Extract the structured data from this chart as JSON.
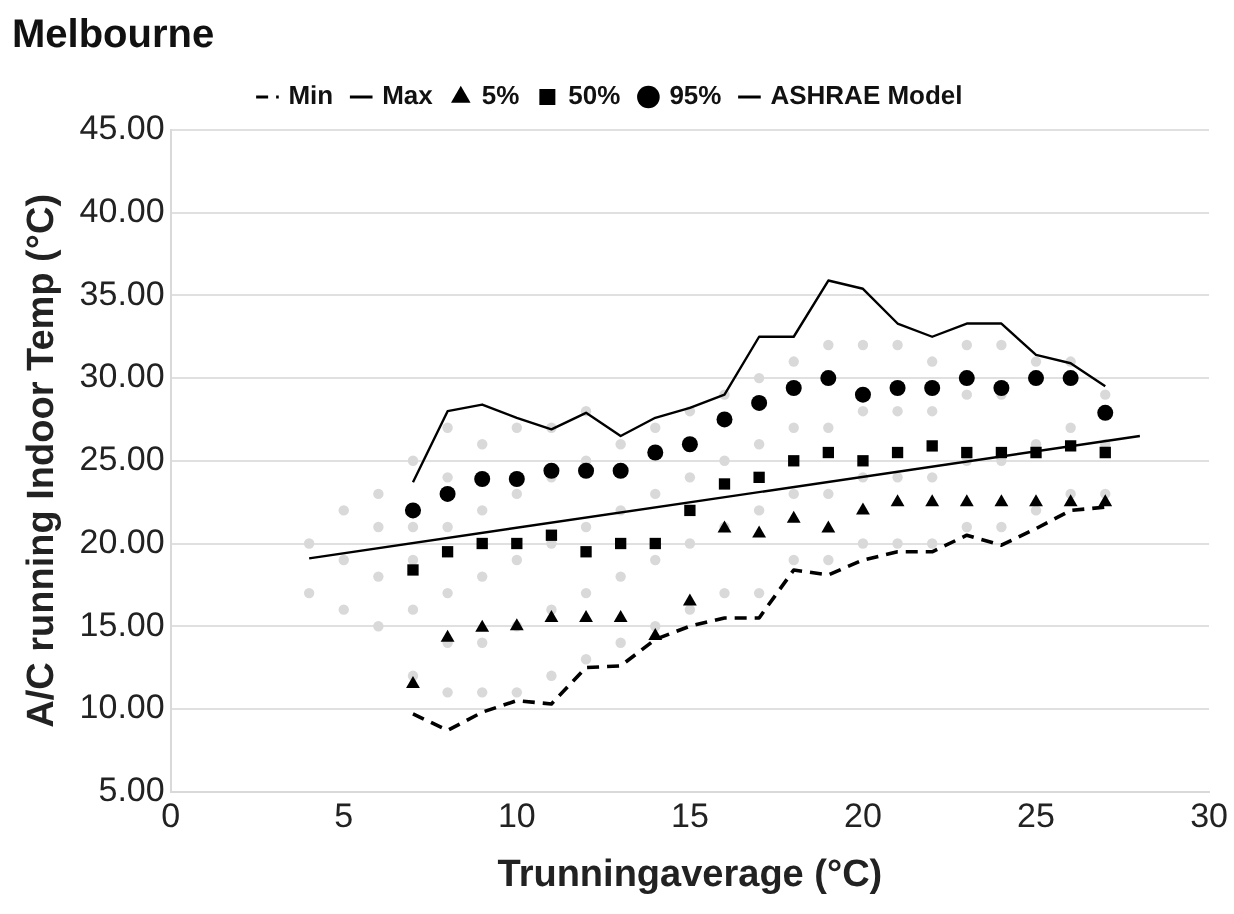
{
  "chart_data": {
    "type": "scatter",
    "title": "Melbourne",
    "xlabel": "Trunningaverage (°C)",
    "ylabel": "A/C running Indoor Temp (°C)",
    "xlim": [
      0,
      30
    ],
    "xticks": [
      0,
      5,
      10,
      15,
      20,
      25,
      30
    ],
    "ylim": [
      5,
      45
    ],
    "yticks": [
      {
        "value": 5,
        "label": "5.00"
      },
      {
        "value": 10,
        "label": "10.00"
      },
      {
        "value": 15,
        "label": "15.00"
      },
      {
        "value": 20,
        "label": "20.00"
      },
      {
        "value": 25,
        "label": "25.00"
      },
      {
        "value": 30,
        "label": "30.00"
      },
      {
        "value": 35,
        "label": "35.00"
      },
      {
        "value": 40,
        "label": "40.00"
      },
      {
        "value": 45,
        "label": "45.00"
      }
    ],
    "grid": "y",
    "legend": "top",
    "series": [
      {
        "type": "scatter",
        "color": "#d9d9d9",
        "marker": "circle",
        "x": [
          4,
          4,
          5,
          5,
          5,
          6,
          6,
          6,
          6,
          7,
          7,
          7,
          7,
          7,
          8,
          8,
          8,
          8,
          8,
          8,
          9,
          9,
          9,
          9,
          9,
          10,
          10,
          10,
          10,
          10,
          11,
          11,
          11,
          11,
          11,
          12,
          12,
          12,
          12,
          12,
          13,
          13,
          13,
          13,
          14,
          14,
          14,
          14,
          15,
          15,
          15,
          15,
          16,
          16,
          16,
          16,
          17,
          17,
          17,
          17,
          18,
          18,
          18,
          18,
          19,
          19,
          19,
          19,
          20,
          20,
          20,
          20,
          21,
          21,
          21,
          21,
          22,
          22,
          22,
          22,
          23,
          23,
          23,
          23,
          24,
          24,
          24,
          24,
          25,
          25,
          25,
          26,
          26,
          26,
          27,
          27,
          27
        ],
        "values": [
          17,
          20,
          16,
          19,
          22,
          15,
          18,
          21,
          23,
          12,
          16,
          19,
          21,
          25,
          11,
          14,
          17,
          21,
          24,
          27,
          11,
          14,
          18,
          22,
          26,
          11,
          15,
          19,
          23,
          27,
          12,
          16,
          20,
          24,
          27,
          13,
          17,
          21,
          25,
          28,
          14,
          18,
          22,
          26,
          15,
          19,
          23,
          27,
          16,
          20,
          24,
          28,
          17,
          21,
          25,
          29,
          17,
          22,
          26,
          30,
          19,
          23,
          27,
          31,
          19,
          23,
          27,
          32,
          20,
          24,
          28,
          32,
          20,
          24,
          28,
          32,
          20,
          24,
          28,
          31,
          21,
          25,
          29,
          32,
          21,
          25,
          29,
          32,
          22,
          26,
          31,
          23,
          27,
          31,
          23,
          26,
          29
        ]
      },
      {
        "type": "line",
        "name": "Min",
        "color": "#000000",
        "line_style": "dashed",
        "marker": "none",
        "x": [
          7,
          8,
          9,
          10,
          11,
          12,
          13,
          14,
          15,
          16,
          17,
          18,
          19,
          20,
          21,
          22,
          23,
          24,
          25,
          26,
          27
        ],
        "values": [
          9.7,
          8.7,
          9.8,
          10.5,
          10.3,
          12.5,
          12.6,
          14.2,
          15.0,
          15.5,
          15.5,
          18.4,
          18.1,
          19.0,
          19.5,
          19.5,
          20.5,
          19.9,
          20.9,
          22.0,
          22.2
        ]
      },
      {
        "type": "line",
        "name": "Max",
        "color": "#000000",
        "line_style": "solid",
        "marker": "none",
        "x": [
          7,
          8,
          9,
          10,
          11,
          12,
          13,
          14,
          15,
          16,
          17,
          18,
          19,
          20,
          21,
          22,
          23,
          24,
          25,
          26,
          27
        ],
        "values": [
          23.7,
          28.0,
          28.4,
          27.6,
          26.9,
          27.9,
          26.5,
          27.6,
          28.2,
          29.0,
          32.5,
          32.5,
          35.9,
          35.4,
          33.3,
          32.5,
          33.3,
          33.3,
          31.4,
          30.9,
          29.5
        ]
      },
      {
        "type": "scatter",
        "name": "5%",
        "color": "#000000",
        "marker": "triangle",
        "x": [
          7,
          8,
          9,
          10,
          11,
          12,
          13,
          14,
          15,
          16,
          17,
          18,
          19,
          20,
          21,
          22,
          23,
          24,
          25,
          26,
          27
        ],
        "values": [
          11.5,
          14.3,
          14.9,
          15.0,
          15.5,
          15.5,
          15.5,
          14.4,
          16.5,
          20.9,
          20.6,
          21.5,
          20.9,
          22.0,
          22.5,
          22.5,
          22.5,
          22.5,
          22.5,
          22.5,
          22.5
        ]
      },
      {
        "type": "scatter",
        "name": "50%",
        "color": "#000000",
        "marker": "square",
        "x": [
          7,
          8,
          9,
          10,
          11,
          12,
          13,
          14,
          15,
          16,
          17,
          18,
          19,
          20,
          21,
          22,
          23,
          24,
          25,
          26,
          27
        ],
        "values": [
          18.4,
          19.5,
          20.0,
          20.0,
          20.5,
          19.5,
          20.0,
          20.0,
          22.0,
          23.6,
          24.0,
          25.0,
          25.5,
          25.0,
          25.5,
          25.9,
          25.5,
          25.5,
          25.5,
          25.9,
          25.5
        ]
      },
      {
        "type": "scatter",
        "name": "95%",
        "color": "#000000",
        "marker": "circle",
        "x": [
          7,
          8,
          9,
          10,
          11,
          12,
          13,
          14,
          15,
          16,
          17,
          18,
          19,
          20,
          21,
          22,
          23,
          24,
          25,
          26,
          27
        ],
        "values": [
          22.0,
          23.0,
          23.9,
          23.9,
          24.4,
          24.4,
          24.4,
          25.5,
          26.0,
          27.5,
          28.5,
          29.4,
          30.0,
          29.0,
          29.4,
          29.4,
          30.0,
          29.4,
          30.0,
          30.0,
          27.9
        ]
      },
      {
        "type": "line",
        "name": "ASHRAE Model",
        "color": "#000000",
        "line_style": "solid",
        "marker": "none",
        "x": [
          4,
          28
        ],
        "values": [
          19.1,
          26.5
        ]
      }
    ]
  }
}
